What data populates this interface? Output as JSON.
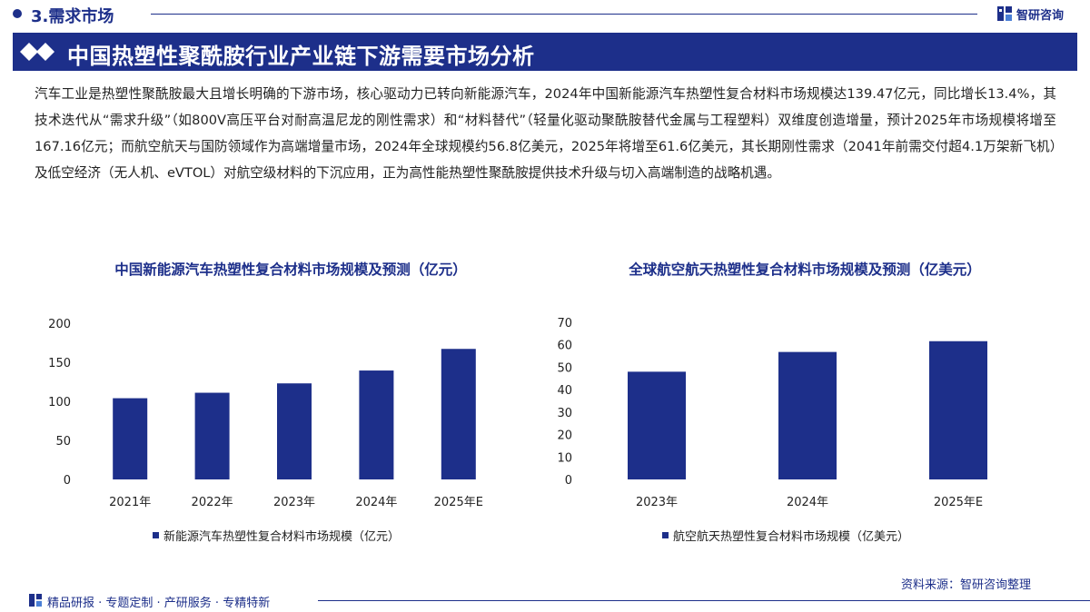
{
  "header": {
    "section_title": "3.需求市场",
    "brand_name": "智研咨询"
  },
  "banner": {
    "title": "中国热塑性聚酰胺行业产业链下游需要市场分析"
  },
  "summary": "汽车工业是热塑性聚酰胺最大且增长明确的下游市场，核心驱动力已转向新能源汽车，2024年中国新能源汽车热塑性复合材料市场规模达139.47亿元，同比增长13.4%，其技术迭代从“需求升级”（如800V高压平台对耐高温尼龙的刚性需求）和“材料替代”（轻量化驱动聚酰胺替代金属与工程塑料）双维度创造增量，预计2025年市场规模将增至167.16亿元；而航空航天与国防领域作为高端增量市场，2024年全球规模约56.8亿美元，2025年将增至61.6亿美元，其长期刚性需求（2041年前需交付超4.1万架新飞机）及低空经济（无人机、eVTOL）对航空级材料的下沉应用，正为高性能热塑性聚酰胺提供技术升级与切入高端制造的战略机遇。",
  "chart_data": [
    {
      "type": "bar",
      "title": "中国新能源汽车热塑性复合材料市场规模及预测（亿元）",
      "categories": [
        "2021年",
        "2022年",
        "2023年",
        "2024年",
        "2025年E"
      ],
      "series": [
        {
          "name": "新能源汽车热塑性复合材料市场规模（亿元）",
          "values": [
            104,
            111,
            123,
            139.47,
            167.16
          ]
        }
      ],
      "yticks": [
        "200",
        "150",
        "100",
        "50",
        "0"
      ],
      "ylim": [
        0,
        200
      ],
      "grid": false,
      "legend_position": "bottom",
      "color": "#1d2f8a"
    },
    {
      "type": "bar",
      "title": "全球航空航天热塑性复合材料市场规模及预测（亿美元）",
      "categories": [
        "2023年",
        "2024年",
        "2025年E"
      ],
      "series": [
        {
          "name": "航空航天热塑性复合材料市场规模（亿美元）",
          "values": [
            48,
            56.8,
            61.6
          ]
        }
      ],
      "yticks": [
        "70",
        "60",
        "50",
        "40",
        "30",
        "20",
        "10",
        "0"
      ],
      "ylim": [
        0,
        70
      ],
      "grid": false,
      "legend_position": "bottom",
      "color": "#1d2f8a"
    }
  ],
  "source": "资料来源：智研咨询整理",
  "footer": {
    "text": "精品研报 · 专题定制 · 产研服务 · 专精特新"
  }
}
